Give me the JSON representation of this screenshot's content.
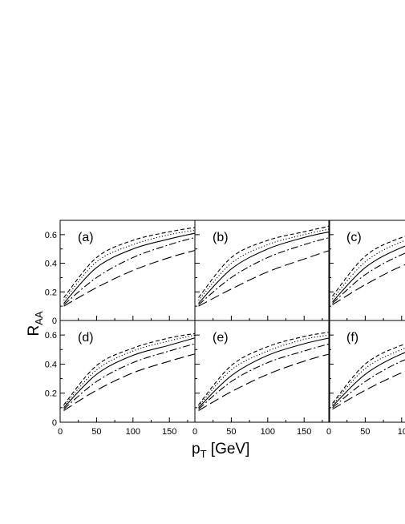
{
  "chart_data": {
    "type": "line",
    "ylabel": "R",
    "ylabel_sub": "AA",
    "xlabel_main": "p",
    "xlabel_sub": "T",
    "xlabel_unit": " [GeV]",
    "x_ticks": [
      "0",
      "50",
      "100",
      "150"
    ],
    "x_ticks_cut": "10",
    "y_ticks": [
      "0",
      "0.2",
      "0.4",
      "0.6"
    ],
    "xlim": [
      0,
      185
    ],
    "ylim": [
      0,
      0.7
    ],
    "grid": false,
    "panels": [
      {
        "label": "(a)",
        "x": [
          5,
          50,
          100,
          150,
          185
        ],
        "series": [
          {
            "style": "short-dash",
            "values": [
              0.16,
              0.44,
              0.56,
              0.62,
              0.65
            ]
          },
          {
            "style": "dotted",
            "values": [
              0.14,
              0.41,
              0.53,
              0.6,
              0.63
            ]
          },
          {
            "style": "solid",
            "values": [
              0.12,
              0.37,
              0.5,
              0.57,
              0.61
            ]
          },
          {
            "style": "dash-dot",
            "values": [
              0.11,
              0.3,
              0.44,
              0.53,
              0.58
            ]
          },
          {
            "style": "long-dash",
            "values": [
              0.1,
              0.23,
              0.35,
              0.44,
              0.49
            ]
          }
        ]
      },
      {
        "label": "(b)",
        "x": [
          5,
          50,
          100,
          150,
          185
        ],
        "series": [
          {
            "style": "short-dash",
            "values": [
              0.16,
              0.44,
              0.56,
              0.62,
              0.66
            ]
          },
          {
            "style": "dotted",
            "values": [
              0.14,
              0.4,
              0.53,
              0.6,
              0.64
            ]
          },
          {
            "style": "solid",
            "values": [
              0.12,
              0.36,
              0.5,
              0.58,
              0.62
            ]
          },
          {
            "style": "dash-dot",
            "values": [
              0.11,
              0.3,
              0.44,
              0.53,
              0.58
            ]
          },
          {
            "style": "long-dash",
            "values": [
              0.1,
              0.22,
              0.34,
              0.43,
              0.49
            ]
          }
        ]
      },
      {
        "label": "(c)",
        "x": [
          5,
          50,
          100,
          150,
          185
        ],
        "series": [
          {
            "style": "short-dash",
            "values": [
              0.17,
              0.45,
              0.58,
              0.64,
              0.67
            ]
          },
          {
            "style": "dotted",
            "values": [
              0.15,
              0.41,
              0.55,
              0.62,
              0.65
            ]
          },
          {
            "style": "solid",
            "values": [
              0.13,
              0.37,
              0.51,
              0.59,
              0.63
            ]
          },
          {
            "style": "dash-dot",
            "values": [
              0.12,
              0.32,
              0.46,
              0.55,
              0.6
            ]
          },
          {
            "style": "long-dash",
            "values": [
              0.11,
              0.25,
              0.38,
              0.47,
              0.52
            ]
          }
        ]
      },
      {
        "label": "(d)",
        "x": [
          5,
          50,
          100,
          150,
          185
        ],
        "series": [
          {
            "style": "short-dash",
            "values": [
              0.12,
              0.39,
              0.51,
              0.58,
              0.61
            ]
          },
          {
            "style": "dotted",
            "values": [
              0.11,
              0.36,
              0.49,
              0.56,
              0.6
            ]
          },
          {
            "style": "solid",
            "values": [
              0.1,
              0.33,
              0.46,
              0.53,
              0.58
            ]
          },
          {
            "style": "dash-dot",
            "values": [
              0.09,
              0.28,
              0.41,
              0.49,
              0.54
            ]
          },
          {
            "style": "long-dash",
            "values": [
              0.08,
              0.22,
              0.34,
              0.42,
              0.47
            ]
          }
        ]
      },
      {
        "label": "(e)",
        "x": [
          5,
          50,
          100,
          150,
          185
        ],
        "series": [
          {
            "style": "short-dash",
            "values": [
              0.12,
              0.39,
              0.52,
              0.59,
              0.62
            ]
          },
          {
            "style": "dotted",
            "values": [
              0.11,
              0.36,
              0.49,
              0.57,
              0.6
            ]
          },
          {
            "style": "solid",
            "values": [
              0.1,
              0.32,
              0.46,
              0.54,
              0.58
            ]
          },
          {
            "style": "dash-dot",
            "values": [
              0.09,
              0.28,
              0.41,
              0.49,
              0.54
            ]
          },
          {
            "style": "long-dash",
            "values": [
              0.08,
              0.21,
              0.33,
              0.42,
              0.47
            ]
          }
        ]
      },
      {
        "label": "(f)",
        "x": [
          5,
          50,
          100,
          150,
          185
        ],
        "series": [
          {
            "style": "short-dash",
            "values": [
              0.13,
              0.4,
              0.53,
              0.6,
              0.63
            ]
          },
          {
            "style": "dotted",
            "values": [
              0.12,
              0.37,
              0.5,
              0.58,
              0.61
            ]
          },
          {
            "style": "solid",
            "values": [
              0.11,
              0.33,
              0.47,
              0.55,
              0.59
            ]
          },
          {
            "style": "dash-dot",
            "values": [
              0.1,
              0.28,
              0.42,
              0.5,
              0.55
            ]
          },
          {
            "style": "long-dash",
            "values": [
              0.09,
              0.22,
              0.34,
              0.43,
              0.48
            ]
          }
        ]
      }
    ]
  }
}
